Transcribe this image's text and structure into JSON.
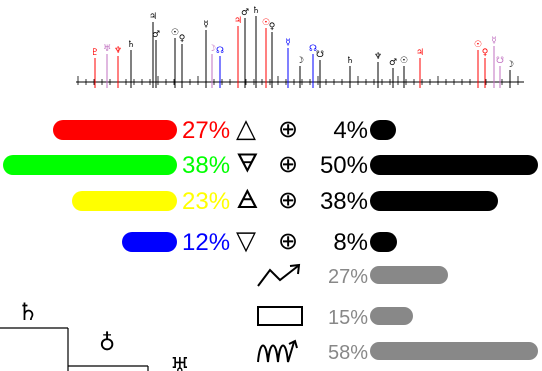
{
  "colors": {
    "fire": "#ff0000",
    "earth": "#00ff00",
    "air": "#ffff00",
    "water": "#0000ff",
    "dark": "#000000",
    "gray": "#888888",
    "violet": "#c070c0"
  },
  "timeline": {
    "glyphs": [
      "♇",
      "♅",
      "♆",
      "♄",
      "♃",
      "♂",
      "☉",
      "♀",
      "☿",
      "☽",
      "☊",
      "☋"
    ]
  },
  "elements": [
    {
      "name": "fire",
      "symbol": "△",
      "percent": "27%",
      "value": 0.27
    },
    {
      "name": "earth",
      "symbol": "🜃",
      "percent": "38%",
      "value": 0.38
    },
    {
      "name": "air",
      "symbol": "🜁",
      "percent": "23%",
      "value": 0.23
    },
    {
      "name": "water",
      "symbol": "▽",
      "percent": "12%",
      "value": 0.12
    }
  ],
  "quadrants": [
    {
      "name": "q1",
      "symbol": "⊕",
      "percent": "4%",
      "value": 0.04
    },
    {
      "name": "q2",
      "symbol": "⊕",
      "percent": "50%",
      "value": 0.5
    },
    {
      "name": "q3",
      "symbol": "⊕",
      "percent": "38%",
      "value": 0.38
    },
    {
      "name": "q4",
      "symbol": "⊕",
      "percent": "8%",
      "value": 0.08
    }
  ],
  "modalities": [
    {
      "name": "cardinal",
      "percent": "27%",
      "value": 0.27
    },
    {
      "name": "fixed",
      "percent": "15%",
      "value": 0.15
    },
    {
      "name": "mutable",
      "percent": "58%",
      "value": 0.58
    }
  ],
  "chart_corner": {
    "glyph_top": "♄",
    "glyph_mid": "♁",
    "glyph_edge": "♅"
  }
}
